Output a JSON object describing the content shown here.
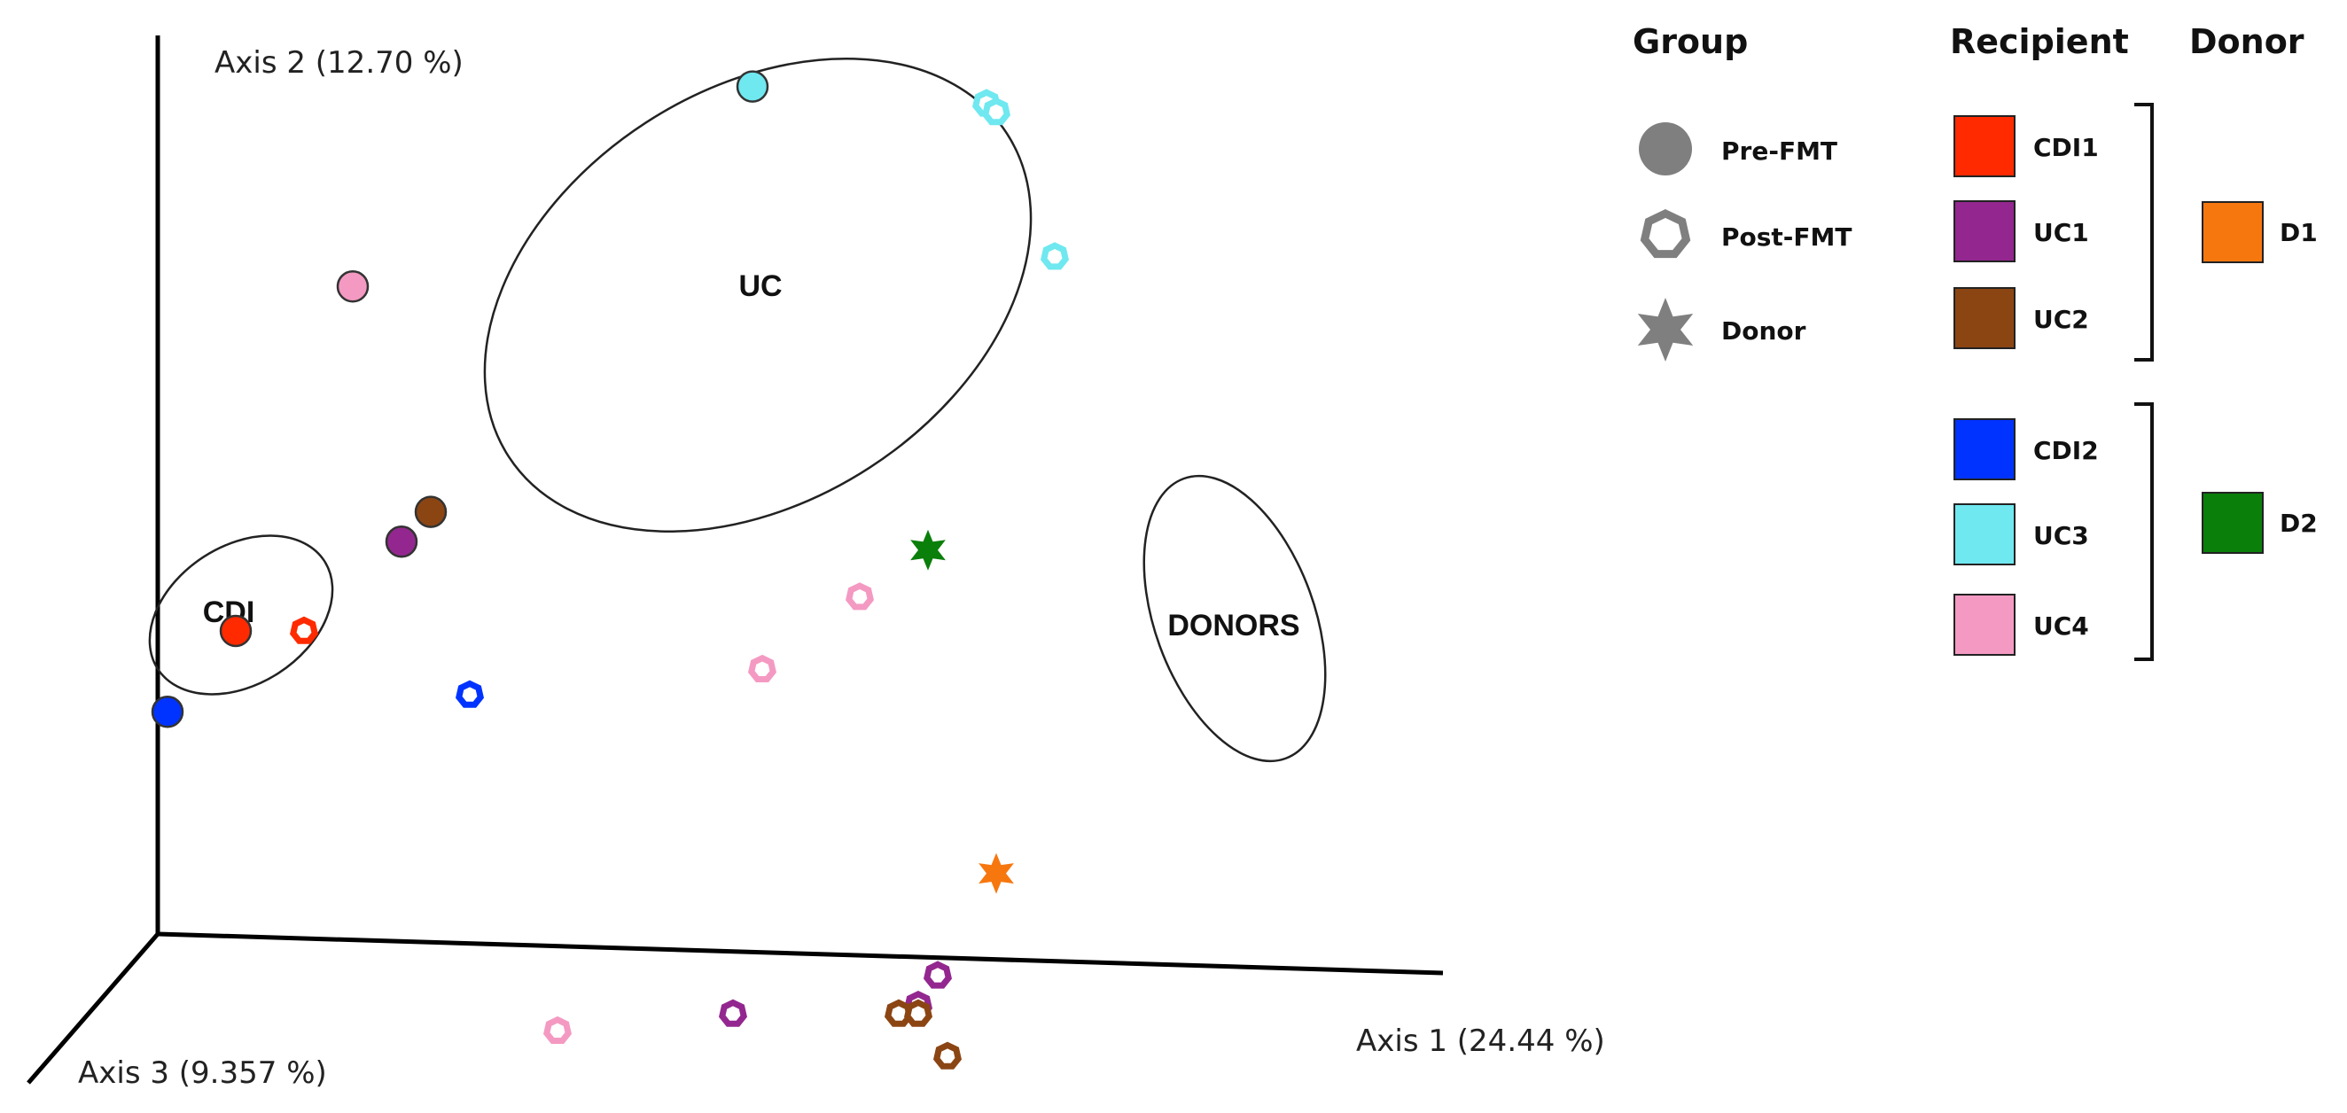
{
  "chart_data": {
    "type": "scatter",
    "title": "",
    "axes": {
      "x": "Axis 1 (24.44 %)",
      "y": "Axis 2 (12.70 %)",
      "z": "Axis 3 (9.357 %)"
    },
    "clusters": [
      {
        "label": "UC"
      },
      {
        "label": "CDI"
      },
      {
        "label": "DONORS"
      }
    ],
    "colors": {
      "CDI1": "#ff2a00",
      "UC1": "#93278f",
      "UC2": "#8b4513",
      "CDI2": "#0033ff",
      "UC3": "#6fe8f0",
      "UC4": "#f49ac2",
      "D1": "#f7770f",
      "D2": "#0a7f0a",
      "legend_gray": "#7f7f7f"
    },
    "points": [
      {
        "id": "UC3",
        "group": "Pre-FMT",
        "x": 0.61,
        "y": 1.13
      },
      {
        "id": "UC4",
        "group": "Pre-FMT",
        "x": 0.2,
        "y": 0.66
      },
      {
        "id": "UC2",
        "group": "Pre-FMT",
        "x": 0.28,
        "y": 0.13
      },
      {
        "id": "UC1",
        "group": "Pre-FMT",
        "x": 0.25,
        "y": 0.06
      },
      {
        "id": "CDI1",
        "group": "Pre-FMT",
        "x": 0.08,
        "y": -0.15
      },
      {
        "id": "CDI2",
        "group": "Pre-FMT",
        "x": 0.01,
        "y": -0.34
      },
      {
        "id": "UC3",
        "group": "Post-FMT",
        "x": 0.85,
        "y": 1.09
      },
      {
        "id": "UC3",
        "group": "Post-FMT",
        "x": 0.86,
        "y": 1.07
      },
      {
        "id": "UC3",
        "group": "Post-FMT",
        "x": 0.92,
        "y": 0.73
      },
      {
        "id": "CDI1",
        "group": "Post-FMT",
        "x": 0.15,
        "y": -0.15
      },
      {
        "id": "CDI2",
        "group": "Post-FMT",
        "x": 0.32,
        "y": -0.3
      },
      {
        "id": "UC4",
        "group": "Post-FMT",
        "x": 0.72,
        "y": -0.07
      },
      {
        "id": "UC4",
        "group": "Post-FMT",
        "x": 0.62,
        "y": -0.24
      },
      {
        "id": "UC4",
        "group": "Post-FMT",
        "x": 0.41,
        "y": -1.09
      },
      {
        "id": "UC1",
        "group": "Post-FMT",
        "x": 0.59,
        "y": -1.05
      },
      {
        "id": "UC1",
        "group": "Post-FMT",
        "x": 0.8,
        "y": -0.96
      },
      {
        "id": "UC1",
        "group": "Post-FMT",
        "x": 0.78,
        "y": -1.03
      },
      {
        "id": "UC2",
        "group": "Post-FMT",
        "x": 0.76,
        "y": -1.05
      },
      {
        "id": "UC2",
        "group": "Post-FMT",
        "x": 0.78,
        "y": -1.05
      },
      {
        "id": "UC2",
        "group": "Post-FMT",
        "x": 0.81,
        "y": -1.15
      },
      {
        "id": "D2",
        "group": "Donor",
        "x": 0.79,
        "y": 0.04
      },
      {
        "id": "D1",
        "group": "Donor",
        "x": 0.86,
        "y": -0.72
      }
    ]
  },
  "legend": {
    "group_heading": "Group",
    "recipient_heading": "Recipient",
    "donor_heading": "Donor",
    "groups": [
      {
        "label": "Pre-FMT",
        "shape": "filled-circle"
      },
      {
        "label": "Post-FMT",
        "shape": "open-heptagon"
      },
      {
        "label": "Donor",
        "shape": "star"
      }
    ],
    "recipients": [
      {
        "label": "CDI1",
        "color": "#ff2a00"
      },
      {
        "label": "UC1",
        "color": "#93278f"
      },
      {
        "label": "UC2",
        "color": "#8b4513"
      },
      {
        "label": "CDI2",
        "color": "#0033ff"
      },
      {
        "label": "UC3",
        "color": "#6fe8f0"
      },
      {
        "label": "UC4",
        "color": "#f49ac2"
      }
    ],
    "donors": [
      {
        "label": "D1",
        "color": "#f7770f"
      },
      {
        "label": "D2",
        "color": "#0a7f0a"
      }
    ]
  }
}
